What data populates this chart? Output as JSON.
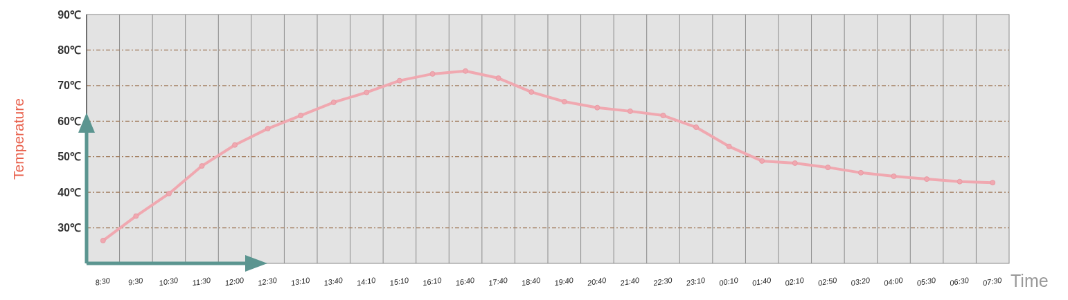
{
  "chart_data": {
    "type": "line",
    "xlabel": "Time",
    "ylabel": "Temperature",
    "categories": [
      "8:30",
      "9:30",
      "10:30",
      "11:30",
      "12:00",
      "12:30",
      "13:10",
      "13:40",
      "14:10",
      "15:10",
      "16:10",
      "16:40",
      "17:40",
      "18:40",
      "19:40",
      "20:40",
      "21:40",
      "22:30",
      "23:10",
      "00:10",
      "01:40",
      "02:10",
      "02:50",
      "03:20",
      "04:00",
      "05:30",
      "06:30",
      "07:30"
    ],
    "series": [
      {
        "color": "#f0a8b0",
        "values": [
          26.4,
          33.3,
          39.6,
          47.4,
          53.3,
          57.9,
          61.6,
          65.3,
          68.1,
          71.4,
          73.3,
          74.1,
          72.1,
          68.2,
          65.5,
          63.8,
          62.8,
          61.6,
          58.3,
          52.9,
          48.8,
          48.2,
          47.0,
          45.5,
          44.5,
          43.7,
          43.0,
          42.7
        ]
      }
    ],
    "ylim": [
      20,
      90
    ],
    "yticks": [
      {
        "value": 30,
        "label": "30℃"
      },
      {
        "value": 40,
        "label": "40℃"
      },
      {
        "value": 50,
        "label": "50℃"
      },
      {
        "value": 60,
        "label": "60℃"
      },
      {
        "value": 70,
        "label": "70℃"
      },
      {
        "value": 80,
        "label": "80℃"
      },
      {
        "value": 90,
        "label": "90℃"
      }
    ],
    "grid": true,
    "marker": "circle",
    "line_style": "solid"
  }
}
